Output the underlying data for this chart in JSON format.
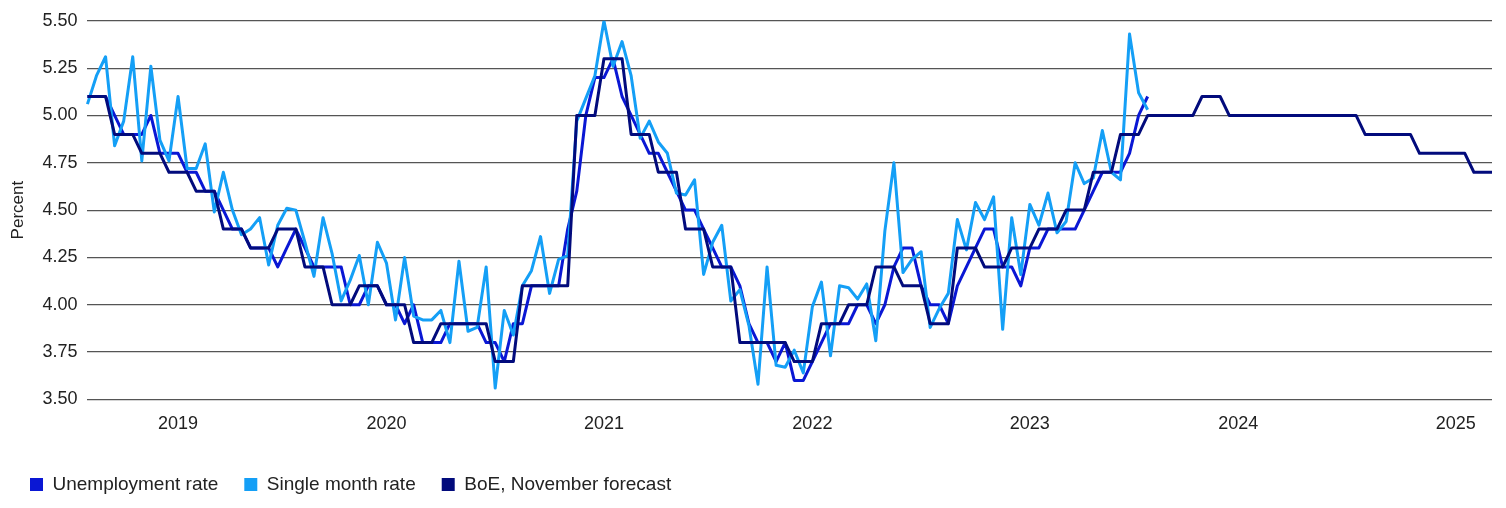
{
  "chart_data": {
    "type": "line",
    "ylabel": "Percent",
    "categories": [
      null,
      null,
      null,
      null,
      null,
      null,
      null,
      null,
      null,
      null,
      "2019",
      null,
      null,
      null,
      null,
      null,
      null,
      null,
      null,
      null,
      null,
      null,
      null,
      null,
      null,
      null,
      null,
      null,
      null,
      null,
      null,
      null,
      null,
      "2020",
      null,
      null,
      null,
      null,
      null,
      null,
      null,
      null,
      null,
      null,
      null,
      null,
      null,
      null,
      null,
      null,
      null,
      null,
      null,
      null,
      null,
      null,
      null,
      "2021",
      null,
      null,
      null,
      null,
      null,
      null,
      null,
      null,
      null,
      null,
      null,
      null,
      null,
      null,
      null,
      null,
      null,
      null,
      null,
      null,
      null,
      null,
      "2022",
      null,
      null,
      null,
      null,
      null,
      null,
      null,
      null,
      null,
      null,
      null,
      null,
      null,
      null,
      null,
      null,
      null,
      null,
      null,
      null,
      null,
      null,
      null,
      "2023",
      null,
      null,
      null,
      null,
      null,
      null,
      null,
      null,
      null,
      null,
      null,
      null,
      null,
      null,
      null,
      null,
      null,
      null,
      null,
      null,
      null,
      null,
      "2024",
      null,
      null,
      null,
      null,
      null,
      null,
      null,
      null,
      null,
      null,
      null,
      null,
      null,
      null,
      null,
      null,
      null,
      null,
      null,
      null,
      null,
      null,
      null,
      "2025",
      null,
      null,
      null,
      null
    ],
    "series": [
      {
        "name": "Unemployment rate",
        "color": "#0a17d4",
        "values": [
          5.1,
          5.1,
          5.1,
          5.0,
          4.9,
          4.9,
          4.9,
          5.0,
          4.8,
          4.8,
          4.8,
          4.7,
          4.7,
          4.6,
          4.6,
          4.5,
          4.4,
          4.4,
          4.3,
          4.3,
          4.3,
          4.2,
          4.3,
          4.4,
          4.3,
          4.2,
          4.2,
          4.2,
          4.2,
          4.0,
          4.0,
          4.1,
          4.1,
          4.0,
          4.0,
          3.9,
          4.0,
          3.8,
          3.8,
          3.8,
          3.9,
          3.9,
          3.9,
          3.9,
          3.8,
          3.8,
          3.7,
          3.9,
          3.9,
          4.1,
          4.1,
          4.1,
          4.1,
          4.4,
          4.6,
          5.0,
          5.2,
          5.2,
          5.3,
          5.1,
          5.0,
          4.9,
          4.8,
          4.8,
          4.7,
          4.6,
          4.5,
          4.5,
          4.4,
          4.3,
          4.2,
          4.2,
          4.1,
          3.9,
          3.8,
          3.8,
          3.7,
          3.8,
          3.6,
          3.6,
          3.7,
          3.8,
          3.9,
          3.9,
          3.9,
          4.0,
          4.0,
          3.9,
          4.0,
          4.2,
          4.3,
          4.3,
          4.1,
          4.0,
          4.0,
          3.9,
          4.1,
          4.2,
          4.3,
          4.4,
          4.4,
          4.2,
          4.2,
          4.1,
          4.3,
          4.3,
          4.4,
          4.4,
          4.4,
          4.4,
          4.5,
          4.6,
          4.7,
          4.7,
          4.7,
          4.8,
          5.0,
          5.1,
          null,
          null,
          null,
          null,
          null,
          null,
          null,
          null,
          null,
          null,
          null,
          null,
          null,
          null,
          null,
          null,
          null,
          null,
          null,
          null,
          null,
          null,
          null,
          null,
          null,
          null,
          null,
          null,
          null,
          null,
          null,
          null,
          null,
          null,
          null,
          null,
          null,
          null
        ]
      },
      {
        "name": "Single month rate",
        "color": "#149ff6",
        "values": [
          5.06,
          5.21,
          5.31,
          4.84,
          4.97,
          5.31,
          4.76,
          5.26,
          4.87,
          4.76,
          5.1,
          4.72,
          4.72,
          4.85,
          4.49,
          4.7,
          4.5,
          4.37,
          4.4,
          4.46,
          4.21,
          4.42,
          4.51,
          4.5,
          4.33,
          4.15,
          4.46,
          4.27,
          4.02,
          4.13,
          4.26,
          4.0,
          4.33,
          4.22,
          3.92,
          4.25,
          3.94,
          3.92,
          3.92,
          3.97,
          3.8,
          4.23,
          3.86,
          3.88,
          4.2,
          3.56,
          3.97,
          3.84,
          4.1,
          4.18,
          4.36,
          4.06,
          4.24,
          4.26,
          4.97,
          5.09,
          5.21,
          5.5,
          5.26,
          5.39,
          5.21,
          4.88,
          4.97,
          4.86,
          4.8,
          4.59,
          4.58,
          4.66,
          4.16,
          4.33,
          4.42,
          4.02,
          4.08,
          3.89,
          3.58,
          4.2,
          3.68,
          3.67,
          3.76,
          3.64,
          3.99,
          4.12,
          3.73,
          4.1,
          4.09,
          4.03,
          4.11,
          3.81,
          4.39,
          4.75,
          4.17,
          4.24,
          4.28,
          3.88,
          3.98,
          4.06,
          4.45,
          4.29,
          4.54,
          4.45,
          4.57,
          3.87,
          4.46,
          4.16,
          4.53,
          4.42,
          4.59,
          4.38,
          4.44,
          4.75,
          4.64,
          4.67,
          4.92,
          4.7,
          4.66,
          5.43,
          5.12,
          5.03,
          null,
          null,
          null,
          null,
          null,
          null,
          null,
          null,
          null,
          null,
          null,
          null,
          null,
          null,
          null,
          null,
          null,
          null,
          null,
          null,
          null,
          null,
          null,
          null,
          null,
          null,
          null,
          null,
          null,
          null,
          null,
          null,
          null,
          null,
          null,
          null,
          null,
          null
        ]
      },
      {
        "name": "BoE, November forecast",
        "color": "#020b7c",
        "values": [
          5.1,
          5.1,
          5.1,
          4.9,
          4.9,
          4.9,
          4.8,
          4.8,
          4.8,
          4.7,
          4.7,
          4.7,
          4.6,
          4.6,
          4.6,
          4.4,
          4.4,
          4.4,
          4.3,
          4.3,
          4.3,
          4.4,
          4.4,
          4.4,
          4.2,
          4.2,
          4.2,
          4.0,
          4.0,
          4.0,
          4.1,
          4.1,
          4.1,
          4.0,
          4.0,
          4.0,
          3.8,
          3.8,
          3.8,
          3.9,
          3.9,
          3.9,
          3.9,
          3.9,
          3.9,
          3.7,
          3.7,
          3.7,
          4.1,
          4.1,
          4.1,
          4.1,
          4.1,
          4.1,
          5.0,
          5.0,
          5.0,
          5.3,
          5.3,
          5.3,
          4.9,
          4.9,
          4.9,
          4.7,
          4.7,
          4.7,
          4.4,
          4.4,
          4.4,
          4.2,
          4.2,
          4.2,
          3.8,
          3.8,
          3.8,
          3.8,
          3.8,
          3.8,
          3.7,
          3.7,
          3.7,
          3.9,
          3.9,
          3.9,
          4.0,
          4.0,
          4.0,
          4.2,
          4.2,
          4.2,
          4.1,
          4.1,
          4.1,
          3.9,
          3.9,
          3.9,
          4.3,
          4.3,
          4.3,
          4.2,
          4.2,
          4.2,
          4.3,
          4.3,
          4.3,
          4.4,
          4.4,
          4.4,
          4.5,
          4.5,
          4.5,
          4.7,
          4.7,
          4.7,
          4.9,
          4.9,
          4.9,
          5.0,
          5.0,
          5.0,
          5.0,
          5.0,
          5.0,
          5.1,
          5.1,
          5.1,
          5.0,
          5.0,
          5.0,
          5.0,
          5.0,
          5.0,
          5.0,
          5.0,
          5.0,
          5.0,
          5.0,
          5.0,
          5.0,
          5.0,
          5.0,
          4.9,
          4.9,
          4.9,
          4.9,
          4.9,
          4.9,
          4.8,
          4.8,
          4.8,
          4.8,
          4.8,
          4.8,
          4.7,
          4.7,
          4.7
        ]
      }
    ],
    "ylim": [
      3.5,
      5.5
    ],
    "yticks": [
      {
        "value": 3.5,
        "label": "3.50"
      },
      {
        "value": 3.75,
        "label": "3.75"
      },
      {
        "value": 4,
        "label": "4.00"
      },
      {
        "value": 4.25,
        "label": "4.25"
      },
      {
        "value": 4.5,
        "label": "4.50"
      },
      {
        "value": 4.75,
        "label": "4.75"
      },
      {
        "value": 5,
        "label": "5.00"
      },
      {
        "value": 5.25,
        "label": "5.25"
      },
      {
        "value": 5.5,
        "label": "5.50"
      }
    ],
    "grid": "y",
    "legend": "bottom left",
    "marker": "none",
    "line_style": "solid"
  }
}
